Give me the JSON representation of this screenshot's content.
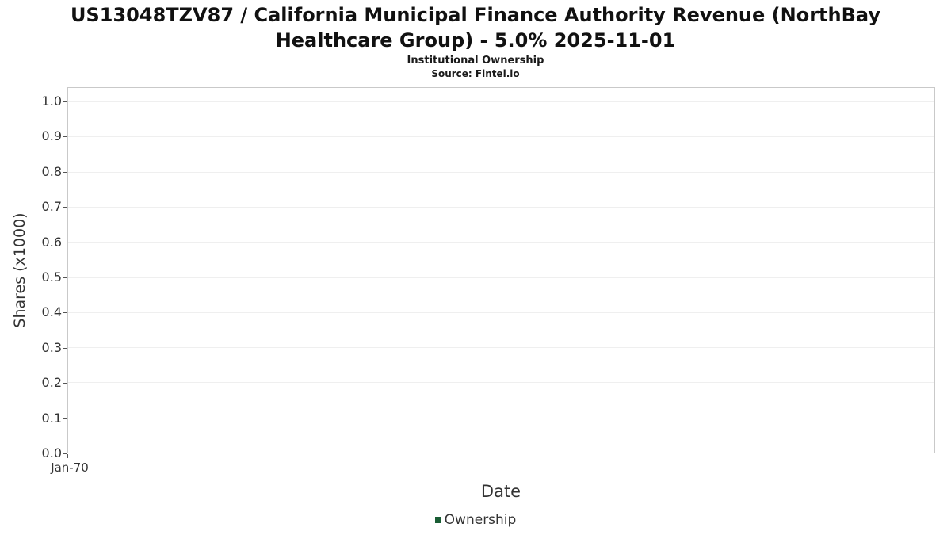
{
  "header": {
    "title_line1": "US13048TZV87 / California Municipal Finance Authority Revenue (NorthBay",
    "title_line2": "Healthcare Group) - 5.0% 2025-11-01",
    "subtitle": "Institutional Ownership",
    "source": "Source: Fintel.io"
  },
  "chart_data": {
    "type": "line",
    "title": "US13048TZV87 / California Municipal Finance Authority Revenue (NorthBay Healthcare Group) - 5.0% 2025-11-01",
    "subtitle": "Institutional Ownership",
    "source": "Source: Fintel.io",
    "xlabel": "Date",
    "ylabel": "Shares (x1000)",
    "xticks": [
      "Jan-70"
    ],
    "yticks": [
      "0.0",
      "0.1",
      "0.2",
      "0.3",
      "0.4",
      "0.5",
      "0.6",
      "0.7",
      "0.8",
      "0.9",
      "1.0"
    ],
    "ylim": [
      0.0,
      1.05
    ],
    "grid": "horizontal-light",
    "plot_background": "#ffffff",
    "plot_border_color": "#c9c9c9",
    "series": [
      {
        "name": "Ownership",
        "color": "#1a5d34",
        "x": [],
        "values": []
      }
    ],
    "legend": {
      "position": "bottom",
      "entries": [
        "Ownership"
      ]
    }
  }
}
